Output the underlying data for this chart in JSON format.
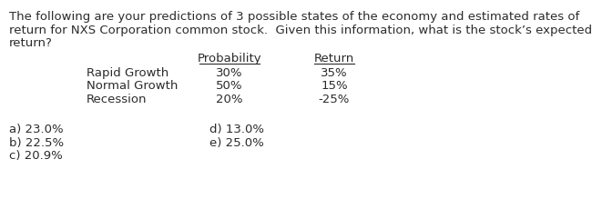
{
  "background_color": "#ffffff",
  "intro_line1": "The following are your predictions of 3 possible states of the economy and estimated rates of",
  "intro_line2": "return for NXS Corporation common stock.  Given this information, what is the stock’s expected",
  "intro_line3": "return?",
  "prob_header": "Probability",
  "ret_header": "Return",
  "rows": [
    [
      "Rapid Growth",
      "30%",
      "35%"
    ],
    [
      "Normal Growth",
      "50%",
      "15%"
    ],
    [
      "Recession",
      "20%",
      "-25%"
    ]
  ],
  "answers_left": [
    "a) 23.0%",
    "b) 22.5%",
    "c) 20.9%"
  ],
  "answers_right": [
    "d) 13.0%",
    "e) 25.0%"
  ],
  "font_size": 9.5,
  "text_color": "#2b2b2b",
  "background_color2": "#ffffff"
}
